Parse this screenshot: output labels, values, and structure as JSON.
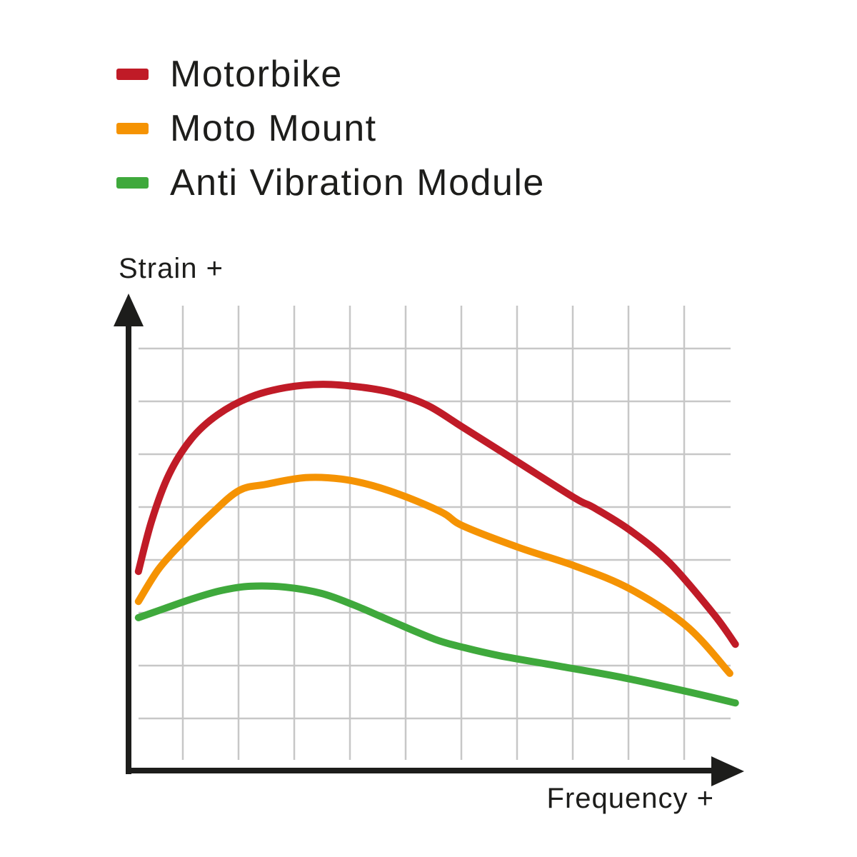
{
  "legend": {
    "items": [
      {
        "label": "Motorbike",
        "color": "#c01b27"
      },
      {
        "label": "Moto Mount",
        "color": "#f59303"
      },
      {
        "label": "Anti Vibration Module",
        "color": "#3fa93c"
      }
    ]
  },
  "axis_labels": {
    "y": "Strain +",
    "x": "Frequency +"
  },
  "colors": {
    "axis": "#1d1d1b",
    "grid": "#c7c7c7",
    "text": "#1d1d1b",
    "background": "#ffffff"
  },
  "chart_data": {
    "type": "line",
    "title": "",
    "xlabel": "Frequency +",
    "ylabel": "Strain +",
    "x_range": [
      0,
      100
    ],
    "y_range": [
      0,
      100
    ],
    "ticks": "none",
    "grid": true,
    "legend_position": "top-left",
    "note": "Axes are unlabeled qualitative axes; point values are percent of plot width (x) and percent of plot height above x-axis (y).",
    "series": [
      {
        "name": "Motorbike",
        "color": "#c01b27",
        "points": [
          [
            1.6,
            41.8
          ],
          [
            3.8,
            52.6
          ],
          [
            6.6,
            62.2
          ],
          [
            10.2,
            69.6
          ],
          [
            14.5,
            74.7
          ],
          [
            19.8,
            78.4
          ],
          [
            25.6,
            80.4
          ],
          [
            31.6,
            81.1
          ],
          [
            37.8,
            80.5
          ],
          [
            43.3,
            79.2
          ],
          [
            48.8,
            76.6
          ],
          [
            54.4,
            72.1
          ],
          [
            63.6,
            64.6
          ],
          [
            72.8,
            57.1
          ],
          [
            75.6,
            55.3
          ],
          [
            81.6,
            50.5
          ],
          [
            88.1,
            43.6
          ],
          [
            95.3,
            32.8
          ],
          [
            98.8,
            26.5
          ]
        ]
      },
      {
        "name": "Moto Mount",
        "color": "#f59303",
        "points": [
          [
            1.6,
            35.5
          ],
          [
            4.9,
            42.3
          ],
          [
            8.7,
            47.8
          ],
          [
            13.4,
            53.8
          ],
          [
            18.0,
            58.8
          ],
          [
            22.4,
            60.1
          ],
          [
            28.8,
            61.5
          ],
          [
            34.7,
            61.2
          ],
          [
            39.8,
            59.8
          ],
          [
            45.3,
            57.4
          ],
          [
            51.2,
            54.1
          ],
          [
            54.4,
            51.4
          ],
          [
            63.6,
            46.8
          ],
          [
            72.8,
            42.9
          ],
          [
            81.7,
            38.1
          ],
          [
            90.9,
            30.3
          ],
          [
            97.9,
            20.4
          ]
        ]
      },
      {
        "name": "Anti Vibration Module",
        "color": "#3fa93c",
        "points": [
          [
            1.6,
            32.1
          ],
          [
            5.8,
            34.0
          ],
          [
            10.5,
            36.1
          ],
          [
            15.1,
            37.8
          ],
          [
            19.8,
            38.7
          ],
          [
            25.6,
            38.5
          ],
          [
            31.4,
            37.2
          ],
          [
            36.6,
            34.8
          ],
          [
            42.4,
            31.6
          ],
          [
            49.8,
            27.6
          ],
          [
            54.7,
            25.8
          ],
          [
            60.5,
            24.1
          ],
          [
            69.8,
            22.0
          ],
          [
            80.2,
            19.6
          ],
          [
            90.9,
            16.6
          ],
          [
            98.8,
            14.2
          ]
        ]
      }
    ]
  }
}
